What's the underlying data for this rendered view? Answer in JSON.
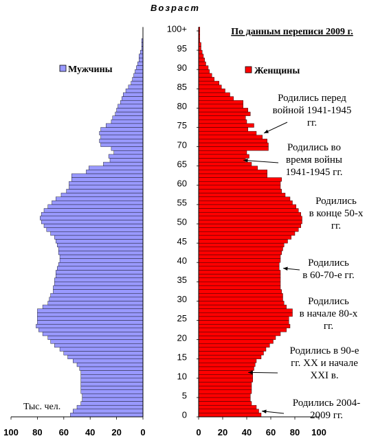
{
  "chart_data": {
    "type": "bar",
    "title": "Возраст",
    "source_note": "По данным переписи 2009 г.",
    "unit_label": "Тыс. чел.",
    "age_ticks": [
      "0",
      "5",
      "10",
      "15",
      "20",
      "25",
      "30",
      "35",
      "40",
      "45",
      "50",
      "55",
      "60",
      "65",
      "70",
      "75",
      "80",
      "85",
      "90",
      "95",
      "100+"
    ],
    "x_ticks_left": [
      "100",
      "80",
      "60",
      "40",
      "20",
      "0"
    ],
    "x_ticks_right": [
      "0",
      "20",
      "40",
      "60",
      "80",
      "100"
    ],
    "xlim": [
      0,
      100
    ],
    "series": [
      {
        "name": "Мужчины",
        "color": "#9999ff",
        "side": "left",
        "values": [
          55,
          53,
          50,
          47,
          46,
          46,
          47,
          47,
          47,
          47,
          47,
          47,
          48,
          50,
          53,
          57,
          60,
          63,
          67,
          70,
          72,
          76,
          79,
          81,
          80,
          80,
          80,
          80,
          76,
          72,
          71,
          70,
          68,
          68,
          67,
          67,
          66,
          66,
          65,
          64,
          63,
          63,
          64,
          64,
          65,
          66,
          67,
          70,
          73,
          75,
          77,
          78,
          77,
          75,
          72,
          69,
          66,
          62,
          58,
          56,
          56,
          54,
          54,
          43,
          41,
          30,
          25,
          26,
          22,
          24,
          32,
          33,
          32,
          33,
          32,
          28,
          24,
          23,
          21,
          20,
          19,
          17,
          16,
          15,
          13,
          11,
          9,
          8,
          7,
          6,
          5,
          4,
          3,
          3,
          2,
          1,
          1,
          1,
          0,
          0,
          0
        ]
      },
      {
        "name": "Женщины",
        "color": "#ff0000",
        "side": "right",
        "values": [
          52,
          50,
          48,
          44,
          43,
          43,
          44,
          44,
          44,
          45,
          45,
          45,
          46,
          47,
          48,
          52,
          54,
          56,
          59,
          62,
          64,
          68,
          73,
          76,
          75,
          75,
          78,
          78,
          73,
          71,
          70,
          70,
          69,
          68,
          68,
          68,
          68,
          68,
          67,
          67,
          68,
          68,
          69,
          70,
          71,
          74,
          77,
          80,
          83,
          85,
          86,
          86,
          85,
          83,
          81,
          78,
          76,
          72,
          69,
          68,
          68,
          69,
          57,
          57,
          49,
          44,
          39,
          42,
          40,
          58,
          58,
          57,
          53,
          48,
          41,
          46,
          40,
          39,
          43,
          41,
          37,
          37,
          29,
          26,
          22,
          19,
          17,
          13,
          11,
          9,
          8,
          6,
          5,
          4,
          3,
          2,
          2,
          1,
          1,
          1,
          1
        ]
      }
    ],
    "annotations": [
      {
        "lines": [
          "Родились перед",
          "войной 1941-1945",
          "гг."
        ],
        "age": 73
      },
      {
        "lines": [
          "Родились во",
          "время войны",
          "1941-1945 гг."
        ],
        "age": 66
      },
      {
        "lines": [
          "Родились",
          "в конце 50-х",
          "гг."
        ],
        "age": 50
      },
      {
        "lines": [
          "Родились",
          "в 60-70-е гг."
        ],
        "age": 38
      },
      {
        "lines": [
          "Родились",
          "в начале 80-х",
          "гг."
        ],
        "age": 27
      },
      {
        "lines": [
          "Родились в 90-е",
          "гг. XX и начале",
          "XXI в."
        ],
        "age": 11
      },
      {
        "lines": [
          "Родились 2004-",
          "2009 гг."
        ],
        "age": 1
      }
    ]
  }
}
